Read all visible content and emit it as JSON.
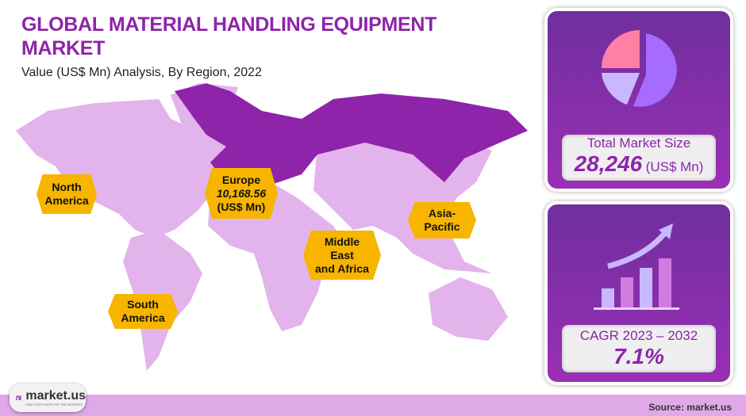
{
  "header": {
    "title": "GLOBAL MATERIAL HANDLING EQUIPMENT MARKET",
    "subtitle": "Value (US$ Mn) Analysis, By Region, 2022"
  },
  "regions": [
    {
      "name": "North America",
      "lines": [
        "North",
        "America"
      ],
      "highlighted": false
    },
    {
      "name": "Europe",
      "lines": [
        "Europe",
        "10,168.56",
        "(US$ Mn)"
      ],
      "highlighted": true
    },
    {
      "name": "Middle East and Africa",
      "lines": [
        "Middle",
        "East",
        "and Africa"
      ],
      "highlighted": false
    },
    {
      "name": "Asia-Pacific",
      "lines": [
        "Asia-",
        "Pacific"
      ],
      "highlighted": false
    },
    {
      "name": "South America",
      "lines": [
        "South",
        "America"
      ],
      "highlighted": false
    }
  ],
  "colors": {
    "highlight": "#8e24aa",
    "map_base": "#e3b3ec",
    "label": "#f7b500",
    "card": "#7b2ba6"
  },
  "market_size": {
    "label": "Total Market Size",
    "value": "28,246",
    "unit": "(US$ Mn)",
    "icon": "pie-chart-icon"
  },
  "cagr": {
    "label": "CAGR 2023 – 2032",
    "value": "7.1%",
    "icon": "growth-bar-chart-icon"
  },
  "footer": {
    "logo_name": "market.us",
    "logo_tagline": "ONE STOP SHOP FOR THE REPORTS",
    "source": "Source: market.us"
  }
}
